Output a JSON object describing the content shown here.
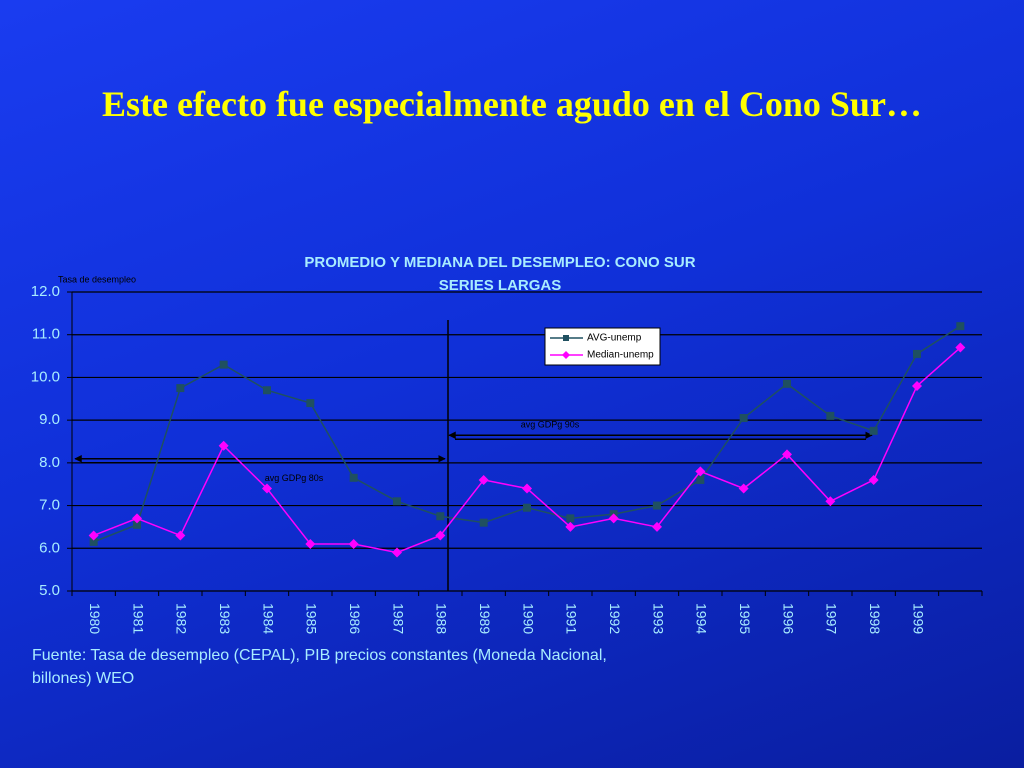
{
  "slide_title": "Este efecto fue especialmente  agudo en el Cono Sur…",
  "source": "Fuente: Tasa de desempleo (CEPAL),  PIB precios constantes (Moneda Nacional, billones) WEO",
  "chart_data": {
    "type": "line",
    "title": "PROMEDIO Y MEDIANA DEL DESEMPLEO: CONO SUR",
    "subtitle": "SERIES LARGAS",
    "y_label": "Tasa de desempleo",
    "categories": [
      "1980",
      "1981",
      "1982",
      "1983",
      "1984",
      "1985",
      "1986",
      "1987",
      "1988",
      "1989",
      "1990",
      "1991",
      "1992",
      "1993",
      "1994",
      "1995",
      "1996",
      "1997",
      "1998",
      "1999",
      null
    ],
    "series": [
      {
        "name": "AVG-unemp",
        "color": "#1f5060",
        "marker": "square",
        "values": [
          6.15,
          6.55,
          9.75,
          10.3,
          9.7,
          9.4,
          7.65,
          7.1,
          6.75,
          6.6,
          6.95,
          6.7,
          6.8,
          7.0,
          7.6,
          9.05,
          9.85,
          9.1,
          8.75,
          10.55,
          11.2
        ]
      },
      {
        "name": "Median-unemp",
        "color": "#ff00ff",
        "marker": "diamond",
        "values": [
          6.3,
          6.7,
          6.3,
          8.4,
          7.4,
          6.1,
          6.1,
          5.9,
          6.3,
          7.6,
          7.4,
          6.5,
          6.7,
          6.5,
          7.8,
          7.4,
          8.2,
          7.1,
          7.6,
          9.8,
          10.7
        ]
      }
    ],
    "ylim": [
      5,
      12
    ],
    "yticks": [
      {
        "value": 5,
        "label": "5.0"
      },
      {
        "value": 6,
        "label": "6.0"
      },
      {
        "value": 7,
        "label": "7.0"
      },
      {
        "value": 8,
        "label": "8.0"
      },
      {
        "value": 9,
        "label": "9.0"
      },
      {
        "value": 10,
        "label": "10.0"
      },
      {
        "value": 11,
        "label": "11.0"
      },
      {
        "value": 12,
        "label": "12.0"
      }
    ],
    "grid": true,
    "legend": "upper right",
    "annotations": [
      "avg GDPg 80s",
      "avg GDPg 90s"
    ]
  }
}
